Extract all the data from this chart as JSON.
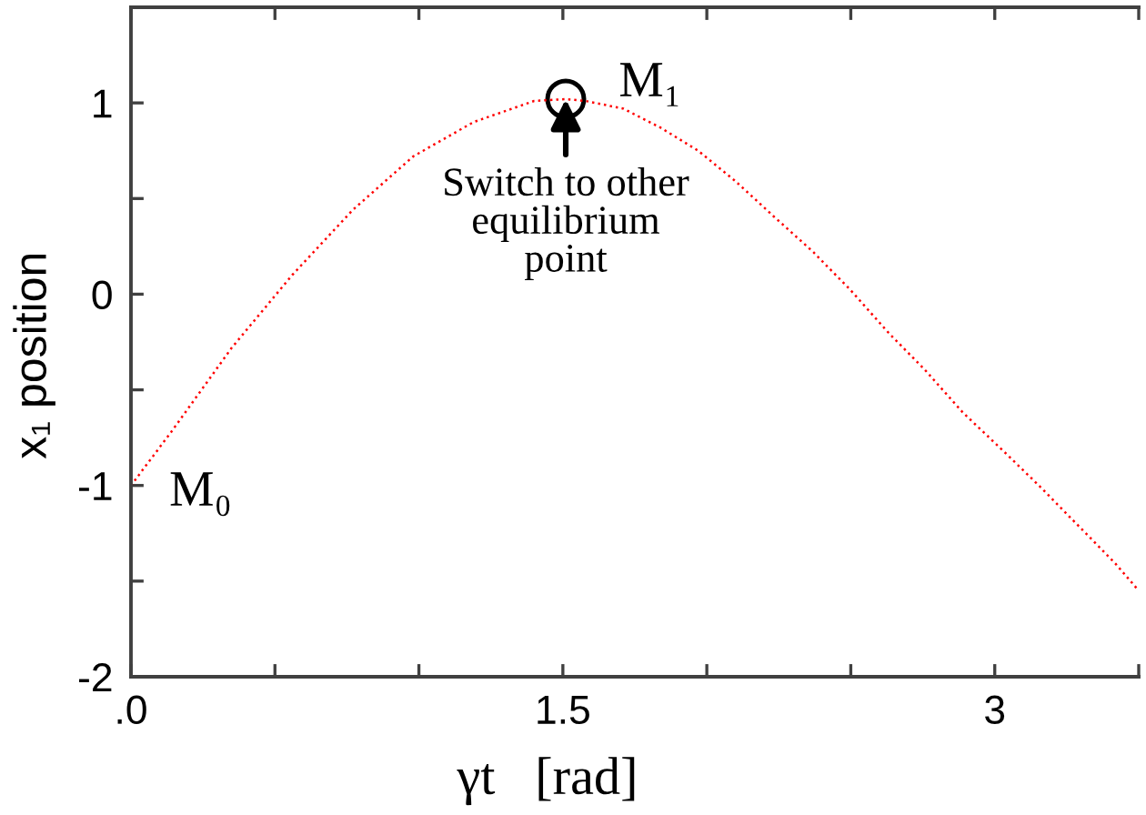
{
  "chart_data": {
    "type": "line",
    "xlabel": "γt   [rad]",
    "ylabel": "x₁ position",
    "x": [
      0,
      0.14,
      0.35,
      0.56,
      0.77,
      0.98,
      1.19,
      1.4,
      1.51,
      1.58,
      1.71,
      1.84,
      1.97,
      2.1,
      2.23,
      2.37,
      2.5,
      2.63,
      2.76,
      2.89,
      3.03,
      3.16,
      3.29,
      3.42,
      3.5
    ],
    "series": [
      {
        "color": "#ff0000",
        "values": [
          -1,
          -0.72,
          -0.28,
          0.1,
          0.44,
          0.72,
          0.9,
          1.01,
          1.02,
          1.01,
          0.97,
          0.87,
          0.75,
          0.59,
          0.41,
          0.22,
          0.02,
          -0.2,
          -0.4,
          -0.62,
          -0.82,
          -1.01,
          -1.21,
          -1.41,
          -1.55
        ]
      }
    ],
    "line_style": "dotted",
    "xlim": [
      0,
      3.5
    ],
    "ylim": [
      -2,
      1.5
    ],
    "xticks": [
      {
        "value": 0,
        "label": ".0"
      },
      {
        "value": 0.5,
        "label": null
      },
      {
        "value": 1,
        "label": null
      },
      1.5,
      {
        "value": 2,
        "label": null
      },
      {
        "value": 2.5,
        "label": null
      },
      3,
      {
        "value": 3.5,
        "label": null
      }
    ],
    "yticks": [
      -2,
      {
        "value": -1.5,
        "label": null
      },
      -1,
      {
        "value": -0.5,
        "label": null
      },
      0,
      {
        "value": 0.5,
        "label": null
      },
      1,
      {
        "value": 1.5,
        "label": null
      }
    ],
    "annotations": [
      "M₀",
      {
        "text": "M₁",
        "x": 1.51,
        "y": 1.02
      },
      {
        "text": "Switch to other\nequilibrium\npoint",
        "x": 1.51,
        "y": 1.02
      }
    ]
  }
}
